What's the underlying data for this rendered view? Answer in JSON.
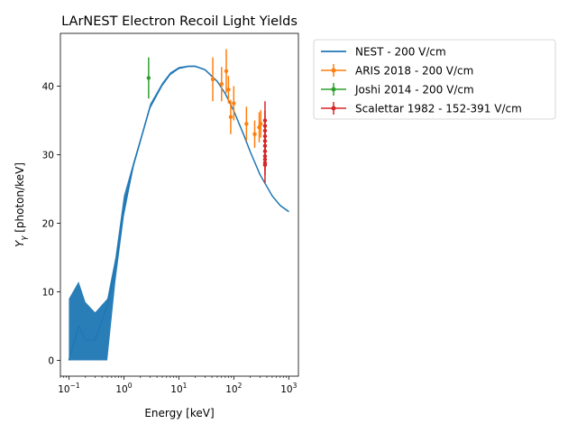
{
  "chart_data": {
    "type": "line",
    "title": "LArNEST Electron Recoil Light Yields",
    "xlabel": "Energy [keV]",
    "ylabel_main": "Y",
    "ylabel_sub": "γ",
    "ylabel_rest": " [photon/keV]",
    "xscale": "log",
    "xlim": [
      0.07,
      1500
    ],
    "ylim": [
      -2.3,
      47.7
    ],
    "x_ticks": [
      {
        "value": 0.1,
        "base": "10",
        "exp": "−1"
      },
      {
        "value": 1,
        "base": "10",
        "exp": "0"
      },
      {
        "value": 10,
        "base": "10",
        "exp": "1"
      },
      {
        "value": 100,
        "base": "10",
        "exp": "2"
      },
      {
        "value": 1000,
        "base": "10",
        "exp": "3"
      }
    ],
    "y_ticks": [
      0,
      10,
      20,
      30,
      40
    ],
    "grid": false,
    "legend_position": "outside-right",
    "series": [
      {
        "name": "NEST - 200 V/cm",
        "kind": "line",
        "color": "#1f77b4",
        "x": [
          0.1,
          0.15,
          0.2,
          0.3,
          0.5,
          0.7,
          1,
          1.5,
          2,
          3,
          5,
          7,
          10,
          15,
          20,
          30,
          50,
          70,
          100,
          150,
          200,
          300,
          500,
          700,
          1000
        ],
        "y": [
          0,
          5,
          3,
          3,
          8,
          13.5,
          22,
          28.5,
          32,
          37,
          40.2,
          41.8,
          42.6,
          42.9,
          42.9,
          42.4,
          40.7,
          38.9,
          36.4,
          33,
          30.4,
          27.1,
          24,
          22.6,
          21.7
        ],
        "band_lower": [
          0,
          0,
          0,
          0,
          0,
          11.5,
          21,
          28.2,
          31.8,
          36.7,
          40,
          41.6,
          42.5,
          42.8,
          42.8,
          42.3,
          40.6,
          38.8,
          36.3,
          32.9,
          30.3,
          27,
          23.9,
          22.5,
          21.6
        ],
        "band_upper": [
          9,
          11.5,
          8.5,
          7,
          9,
          15,
          24,
          29,
          32.4,
          37.4,
          40.5,
          42,
          42.8,
          43,
          43,
          42.5,
          40.8,
          39,
          36.5,
          33.1,
          30.5,
          27.2,
          24.1,
          22.7,
          21.8
        ]
      },
      {
        "name": "ARIS 2018 - 200 V/cm",
        "kind": "errorbar",
        "color": "#ff7f0e",
        "x": [
          41.5,
          60,
          73,
          80,
          88,
          100,
          170,
          240,
          290,
          310
        ],
        "y": [
          41,
          40.3,
          42.2,
          39.5,
          35.5,
          37.5,
          34.5,
          33,
          34,
          34.5
        ],
        "yerr": [
          3.2,
          2.5,
          3.2,
          2,
          2.5,
          2.5,
          2.5,
          2,
          2.2,
          2
        ]
      },
      {
        "name": "Joshi 2014 - 200 V/cm",
        "kind": "errorbar",
        "color": "#2ca02c",
        "x": [
          2.82
        ],
        "y": [
          41.2
        ],
        "yerr": [
          3
        ]
      },
      {
        "name": "Scalettar 1982 - 152-391 V/cm",
        "kind": "errorbar",
        "color": "#d62728",
        "x": [
          370,
          370,
          370,
          370,
          370,
          370,
          370,
          370,
          370,
          370,
          370
        ],
        "y": [
          35,
          34.2,
          33.5,
          32.7,
          32,
          31.3,
          30.5,
          29.8,
          29.3,
          28.8,
          28.5
        ],
        "yerr": [
          2.8,
          2.2,
          1.8,
          1.5,
          1.4,
          1.3,
          1.4,
          1.5,
          1.6,
          1.8,
          2.6
        ]
      }
    ]
  }
}
